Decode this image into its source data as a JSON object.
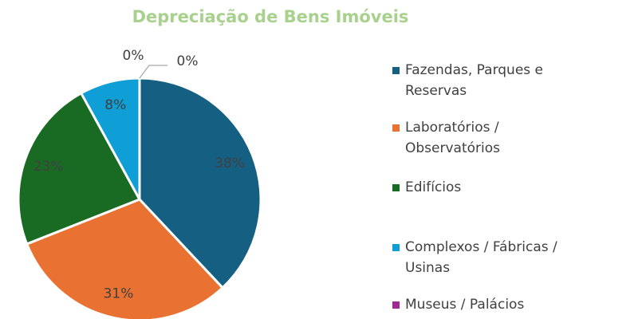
{
  "chart_data": {
    "type": "pie",
    "title": "Depreciação de Bens Imóveis",
    "categories": [
      "Fazendas, Parques e Reservas",
      "Laboratórios / Observatórios",
      "Edifícios",
      "Complexos / Fábricas / Usinas",
      "Museus / Palácios",
      null
    ],
    "values": [
      38,
      31,
      23,
      8,
      0,
      0
    ],
    "value_labels": [
      "38%",
      "31%",
      "23%",
      "8%",
      "0%",
      "0%"
    ],
    "colors": [
      "#156082",
      "#e97132",
      "#196b24",
      "#0f9ed5",
      "#a02b93",
      "#4ea72e"
    ],
    "legend": "right"
  }
}
